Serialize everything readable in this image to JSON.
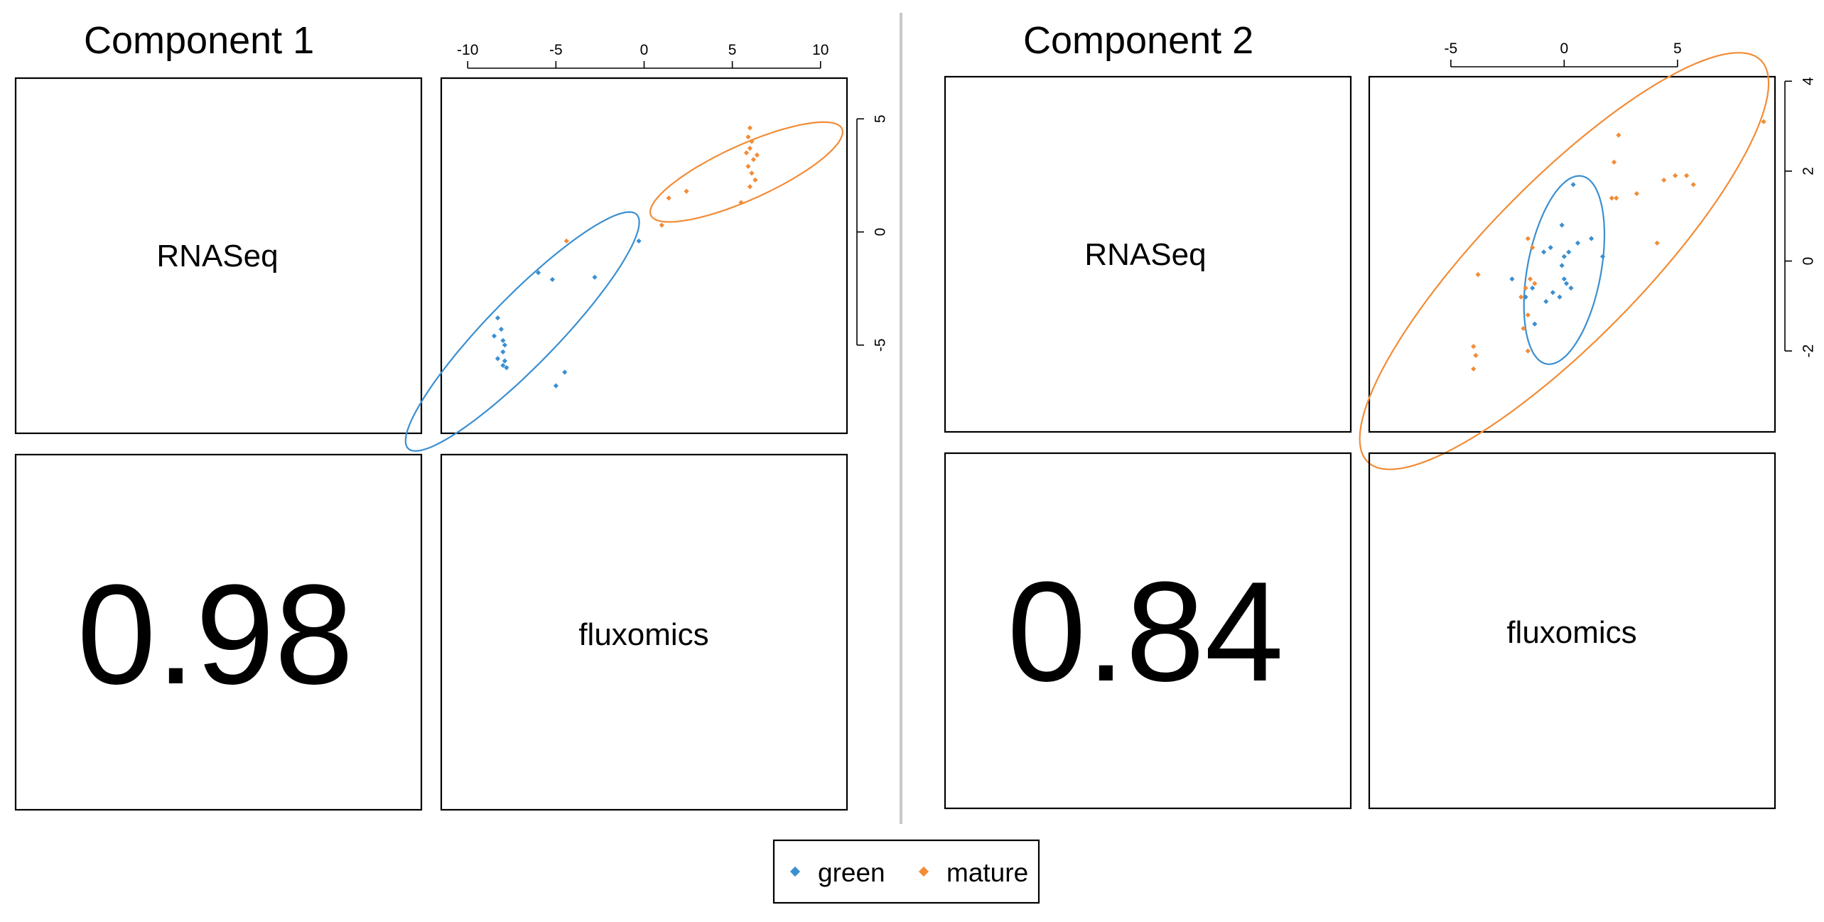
{
  "legend": {
    "entries": [
      {
        "label": "green",
        "color": "#3A8FD1"
      },
      {
        "label": "mature",
        "color": "#F28C36"
      }
    ]
  },
  "chart_data": [
    {
      "type": "scatter",
      "title": "Component 1",
      "variables": [
        "RNASeq",
        "fluxomics"
      ],
      "correlation": "0.98",
      "x_ticks": [
        -10,
        -5,
        0,
        5,
        10
      ],
      "y_ticks": [
        -5,
        0,
        5
      ],
      "xlim": [
        -11.5,
        11.5
      ],
      "ylim": [
        -8.9,
        6.8
      ],
      "grid": false,
      "series": [
        {
          "name": "green",
          "color": "#3A8FD1",
          "points": [
            [
              -8.3,
              -3.8
            ],
            [
              -8.1,
              -4.3
            ],
            [
              -7.9,
              -5.0
            ],
            [
              -8.0,
              -5.3
            ],
            [
              -8.3,
              -5.6
            ],
            [
              -7.9,
              -5.7
            ],
            [
              -8.0,
              -5.9
            ],
            [
              -7.8,
              -6.0
            ],
            [
              -8.5,
              -4.6
            ],
            [
              -8.0,
              -4.8
            ],
            [
              -5.0,
              -6.8
            ],
            [
              -4.5,
              -6.2
            ],
            [
              -6.0,
              -1.8
            ],
            [
              -5.2,
              -2.1
            ],
            [
              -0.3,
              -0.4
            ],
            [
              -2.8,
              -2.0
            ]
          ]
        },
        {
          "name": "mature",
          "color": "#F28C36",
          "points": [
            [
              6.0,
              4.6
            ],
            [
              5.9,
              4.2
            ],
            [
              6.1,
              4.0
            ],
            [
              6.0,
              3.7
            ],
            [
              5.8,
              3.5
            ],
            [
              6.2,
              3.2
            ],
            [
              5.9,
              2.9
            ],
            [
              6.1,
              2.6
            ],
            [
              6.3,
              2.3
            ],
            [
              6.0,
              2.0
            ],
            [
              5.5,
              1.3
            ],
            [
              1.4,
              1.5
            ],
            [
              2.4,
              1.8
            ],
            [
              1.0,
              0.3
            ],
            [
              -4.4,
              -0.4
            ],
            [
              6.4,
              3.4
            ]
          ]
        }
      ],
      "ellipses": [
        {
          "name": "green",
          "center": [
            -6.9,
            -4.4
          ],
          "angle_deg": 38.0,
          "semi_major": 8.3,
          "semi_minor": 1.7
        },
        {
          "name": "mature",
          "center": [
            5.8,
            2.65
          ],
          "angle_deg": 18.9,
          "semi_major": 5.75,
          "semi_minor": 1.25
        }
      ]
    },
    {
      "type": "scatter",
      "title": "Component 2",
      "variables": [
        "RNASeq",
        "fluxomics"
      ],
      "correlation": "0.84",
      "x_ticks": [
        -5,
        0,
        5
      ],
      "y_ticks": [
        -2,
        0,
        2,
        4
      ],
      "xlim": [
        -8.6,
        9.3
      ],
      "ylim": [
        -3.8,
        4.1
      ],
      "grid": false,
      "series": [
        {
          "name": "green",
          "color": "#3A8FD1",
          "points": [
            [
              0.4,
              1.7
            ],
            [
              -0.1,
              0.8
            ],
            [
              -0.6,
              0.3
            ],
            [
              0.2,
              0.2
            ],
            [
              -0.1,
              -0.1
            ],
            [
              0.0,
              -0.4
            ],
            [
              0.3,
              -0.6
            ],
            [
              -0.5,
              -0.7
            ],
            [
              -0.8,
              -0.9
            ],
            [
              -1.4,
              -0.6
            ],
            [
              -1.3,
              -1.4
            ],
            [
              -1.7,
              -0.8
            ],
            [
              -0.9,
              0.2
            ],
            [
              0.6,
              0.4
            ],
            [
              1.2,
              0.5
            ],
            [
              1.7,
              0.1
            ],
            [
              0.0,
              0.1
            ],
            [
              -2.3,
              -0.4
            ],
            [
              -0.2,
              -0.8
            ],
            [
              0.1,
              -0.5
            ]
          ]
        },
        {
          "name": "mature",
          "color": "#F28C36",
          "points": [
            [
              2.4,
              2.8
            ],
            [
              2.2,
              2.2
            ],
            [
              2.3,
              1.4
            ],
            [
              3.2,
              1.5
            ],
            [
              4.4,
              1.8
            ],
            [
              4.9,
              1.9
            ],
            [
              5.4,
              1.9
            ],
            [
              5.7,
              1.7
            ],
            [
              4.1,
              0.4
            ],
            [
              8.8,
              3.1
            ],
            [
              -4.0,
              -1.9
            ],
            [
              -3.9,
              -2.1
            ],
            [
              -4.0,
              -2.4
            ],
            [
              -1.6,
              -2.0
            ],
            [
              -1.8,
              -1.5
            ],
            [
              -1.6,
              -1.2
            ],
            [
              -1.7,
              -0.6
            ],
            [
              -1.5,
              -0.4
            ],
            [
              -1.4,
              0.3
            ],
            [
              -1.6,
              0.5
            ],
            [
              -3.8,
              -0.3
            ],
            [
              -1.9,
              -0.8
            ],
            [
              -1.3,
              -0.5
            ],
            [
              2.1,
              1.4
            ]
          ]
        }
      ],
      "ellipses": [
        {
          "name": "green",
          "center": [
            0.0,
            -0.2
          ],
          "angle_deg": 57.0,
          "semi_major": 2.3,
          "semi_minor": 1.5
        },
        {
          "name": "mature",
          "center": [
            0.0,
            0.0
          ],
          "angle_deg": 25.0,
          "semi_major": 9.9,
          "semi_minor": 2.2
        }
      ]
    }
  ]
}
